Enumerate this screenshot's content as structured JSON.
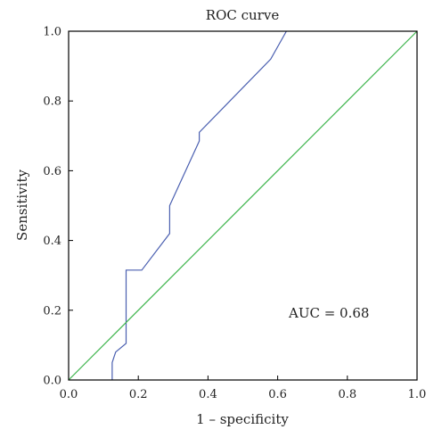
{
  "chart_data": {
    "type": "line",
    "title": "ROC curve",
    "xlabel": "1 – specificity",
    "ylabel": "Sensitivity",
    "xlim": [
      0.0,
      1.0
    ],
    "ylim": [
      0.0,
      1.0
    ],
    "xticks": [
      0.0,
      0.2,
      0.4,
      0.6,
      0.8,
      1.0
    ],
    "yticks": [
      0.0,
      0.2,
      0.4,
      0.6,
      0.8,
      1.0
    ],
    "xtick_labels": [
      "0.0",
      "0.2",
      "0.4",
      "0.6",
      "0.8",
      "1.0"
    ],
    "ytick_labels": [
      "0.0",
      "0.2",
      "0.4",
      "0.6",
      "0.8",
      "1.0"
    ],
    "grid": false,
    "annotation": "AUC = 0.68",
    "series": [
      {
        "color": "#4a5fb0",
        "x": [
          0.125,
          0.125,
          0.135,
          0.165,
          0.165,
          0.21,
          0.29,
          0.29,
          0.375,
          0.375,
          0.58,
          0.625
        ],
        "y": [
          0.0,
          0.05,
          0.08,
          0.105,
          0.315,
          0.315,
          0.42,
          0.5,
          0.685,
          0.71,
          0.92,
          1.0
        ]
      },
      {
        "color": "#3cb44b",
        "x": [
          0.0,
          1.0
        ],
        "y": [
          0.0,
          1.0
        ]
      }
    ]
  }
}
